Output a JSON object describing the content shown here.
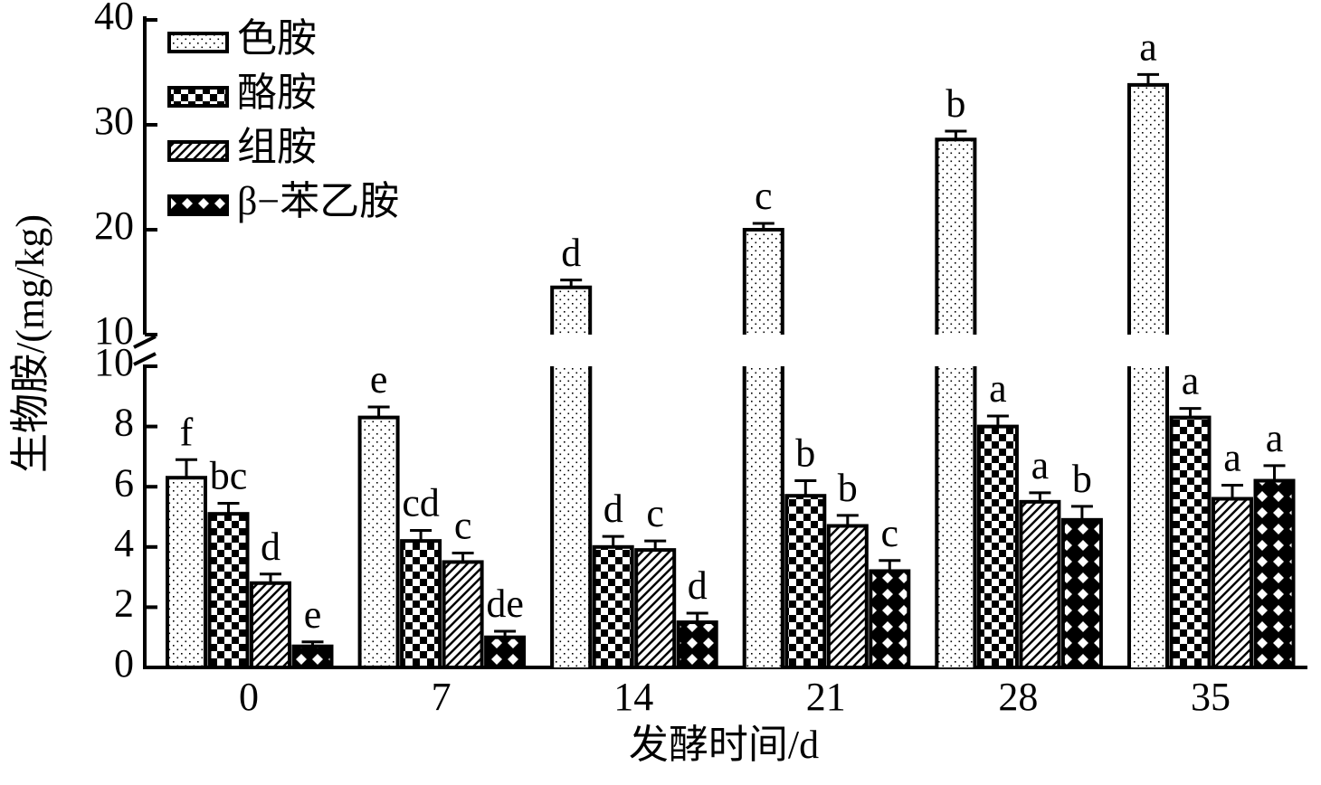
{
  "chart_data": {
    "type": "bar",
    "x_label": "发酵时间/d",
    "y_label": "生物胺/(mg/kg)",
    "categories": [
      "0",
      "7",
      "14",
      "21",
      "28",
      "35"
    ],
    "y_segments": [
      {
        "ylim": [
          0,
          10
        ],
        "yticks": [
          0,
          2,
          4,
          6,
          8,
          10
        ]
      },
      {
        "ylim": [
          10,
          40
        ],
        "yticks": [
          10,
          20,
          30,
          40
        ]
      }
    ],
    "series": [
      {
        "name": "色胺",
        "color": "#000000",
        "pattern": "dots",
        "values": [
          6.3,
          8.3,
          14.5,
          20.0,
          28.6,
          33.8
        ],
        "errors": [
          0.6,
          0.35,
          0.7,
          0.6,
          0.8,
          1.0
        ],
        "letters": [
          "f",
          "e",
          "d",
          "c",
          "b",
          "a"
        ]
      },
      {
        "name": "酪胺",
        "color": "#000000",
        "pattern": "checker",
        "values": [
          5.1,
          4.2,
          4.0,
          5.7,
          8.0,
          8.3
        ],
        "errors": [
          0.35,
          0.35,
          0.35,
          0.5,
          0.35,
          0.3
        ],
        "letters": [
          "bc",
          "cd",
          "d",
          "b",
          "a",
          "a"
        ]
      },
      {
        "name": "组胺",
        "color": "#000000",
        "pattern": "diagonal",
        "values": [
          2.8,
          3.5,
          3.9,
          4.7,
          5.5,
          5.6
        ],
        "errors": [
          0.3,
          0.3,
          0.3,
          0.35,
          0.3,
          0.45
        ],
        "letters": [
          "d",
          "c",
          "c",
          "b",
          "a",
          "a"
        ]
      },
      {
        "name": "β−苯乙胺",
        "color": "#000000",
        "pattern": "cross",
        "values": [
          0.7,
          1.0,
          1.5,
          3.2,
          4.9,
          6.2
        ],
        "errors": [
          0.15,
          0.2,
          0.3,
          0.35,
          0.45,
          0.5
        ],
        "letters": [
          "e",
          "de",
          "d",
          "c",
          "b",
          "a"
        ]
      }
    ],
    "legend": "top-left"
  }
}
